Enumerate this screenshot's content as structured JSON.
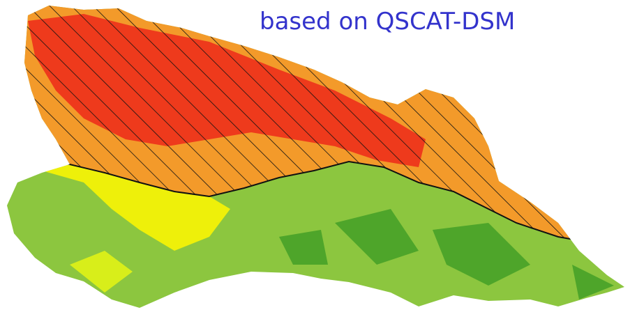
{
  "map": {
    "caption": "based on QSCAT-DSM"
  }
}
